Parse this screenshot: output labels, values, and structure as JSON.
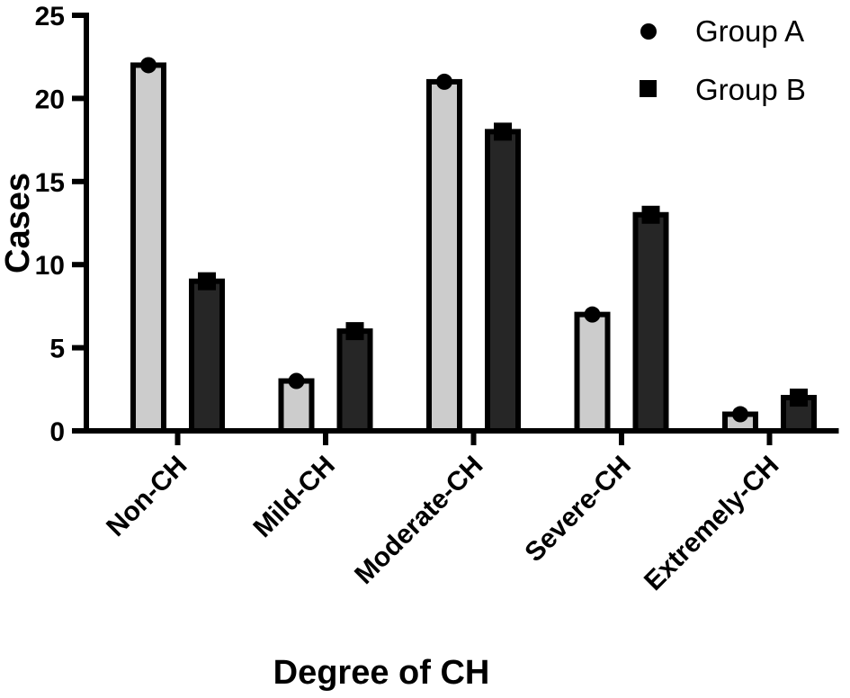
{
  "chart_data": {
    "type": "bar",
    "xlabel": "Degree of CH",
    "ylabel": "Cases",
    "categories": [
      "Non-CH",
      "Mild-CH",
      "Moderate-CH",
      "Severe-CH",
      "Extremely-CH"
    ],
    "series": [
      {
        "name": "Group A",
        "values": [
          22,
          3,
          21,
          7,
          1
        ],
        "color": "#cccccc",
        "marker": "circle"
      },
      {
        "name": "Group B",
        "values": [
          9,
          6,
          18,
          13,
          2
        ],
        "color": "#262626",
        "marker": "square"
      }
    ],
    "ylim": [
      0,
      25
    ],
    "yticks": [
      "0",
      "5",
      "10",
      "15",
      "20",
      "25"
    ],
    "grid": false,
    "legend_position": "top-right",
    "outline_color": "#000000"
  }
}
